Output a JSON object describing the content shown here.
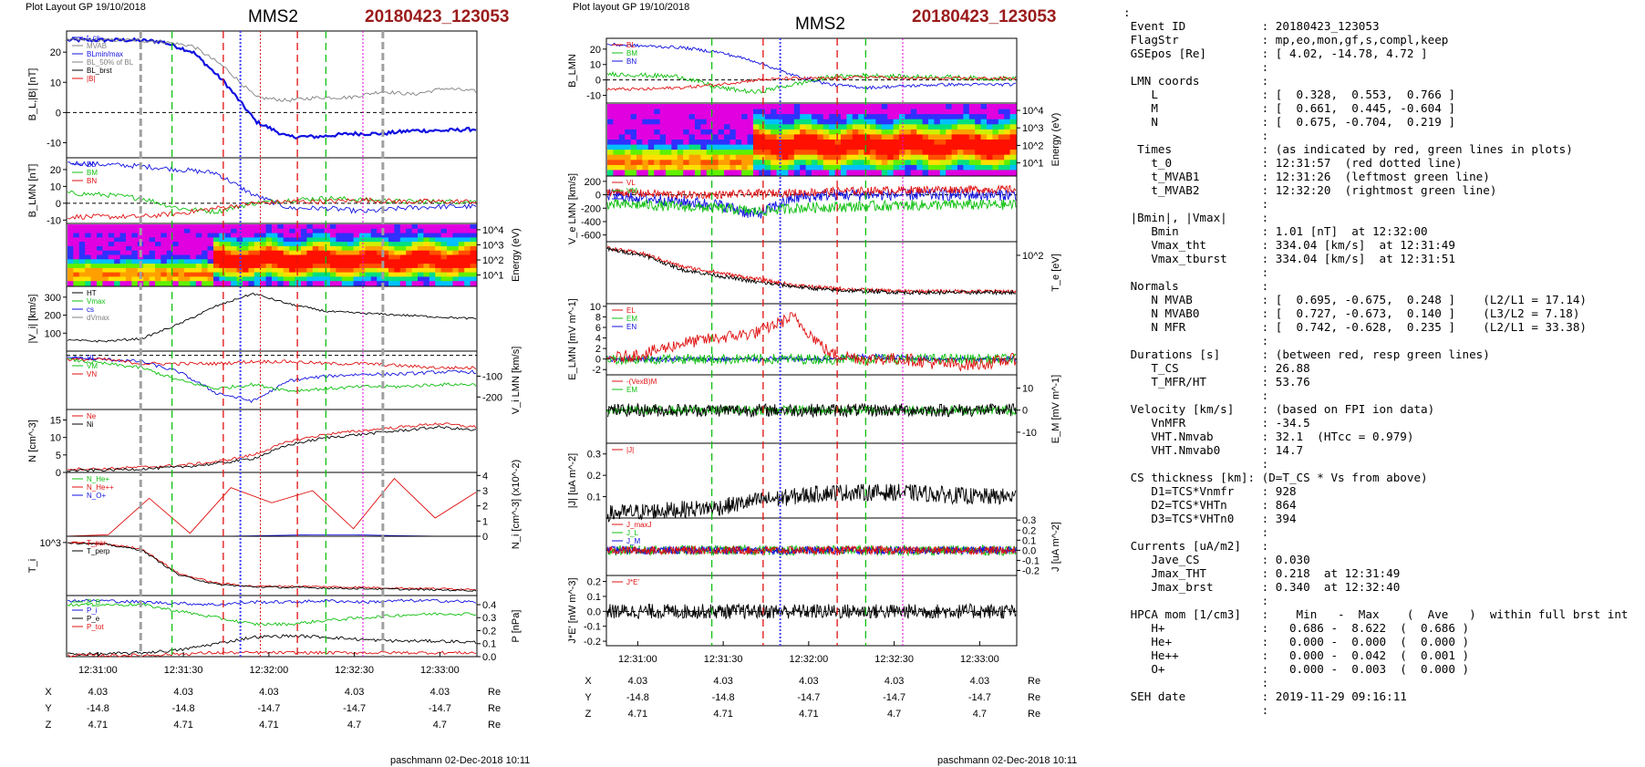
{
  "headers": [
    {
      "small": "Plot Layout GP 19/10/2018",
      "title": "MMS2",
      "event": "20180423_123053"
    },
    {
      "small": "Plot layout GP 19/10/2018",
      "title": "MMS2",
      "event": "20180423_123053"
    }
  ],
  "footer": "paschmann 02-Dec-2018 10:11",
  "time_ticks": [
    "12:31:00",
    "12:31:30",
    "12:32:00",
    "12:32:30",
    "12:33:00"
  ],
  "position_table": {
    "rows": [
      {
        "label": "X",
        "values": [
          "4.03",
          "4.03",
          "4.03",
          "4.03",
          "4.03"
        ],
        "unit": "Re"
      },
      {
        "label": "Y",
        "values": [
          "-14.8",
          "-14.8",
          "-14.7",
          "-14.7",
          "-14.7"
        ],
        "unit": "Re"
      },
      {
        "label": "Z",
        "values": [
          "4.71",
          "4.71",
          "4.71",
          "4.7",
          "4.7"
        ],
        "unit": "Re"
      }
    ]
  },
  "colors": {
    "red": "#e01010",
    "green": "#10c010",
    "blue": "#1010e0",
    "black": "#000000",
    "gray": "#808080",
    "magenta": "#e000e0",
    "title_red": "#9b1b1b"
  },
  "chart_data": [
    {
      "type": "line",
      "panel": "left",
      "x_ticks": [
        "12:31:00",
        "12:31:30",
        "12:32:00",
        "12:32:30",
        "12:33:00"
      ],
      "markers": {
        "green_dashed": [
          "12:31:26",
          "12:32:20"
        ],
        "red_dashed": [
          "12:31:44",
          "12:32:10"
        ],
        "red_dotted": [
          "12:31:57"
        ],
        "gray_dashed": [
          "12:31:15",
          "12:32:40"
        ],
        "blue_dotted": [
          "12:31:50"
        ],
        "magenta_dotted": [
          "12:32:33"
        ]
      },
      "subplots": [
        {
          "ylabel": "B_L,|B| [nT]",
          "yticks": [
            "20",
            "10",
            "0",
            "-10"
          ],
          "legend": [
            "t_cs",
            "MVAB",
            "BLmin/max",
            "BL_50% of BL",
            "BL_brst",
            "|B|"
          ],
          "series": [
            {
              "name": "BL",
              "color": "blue",
              "values": [
                24,
                24,
                24,
                23.5,
                20,
                10,
                -3,
                -8,
                -8,
                -7,
                -7,
                -6,
                -6,
                -5.5
              ]
            },
            {
              "name": "|B|",
              "color": "gray",
              "values": [
                24,
                24,
                24,
                23.5,
                22,
                15,
                5,
                4,
                5,
                5,
                7,
                6,
                8,
                7
              ]
            }
          ]
        },
        {
          "ylabel": "B_LMN [nT]",
          "yticks": [
            "20",
            "10",
            "0",
            "-10"
          ],
          "legend": [
            "BL",
            "BM",
            "BN"
          ],
          "series": [
            {
              "name": "BL",
              "color": "blue",
              "values": [
                24,
                23,
                22,
                20,
                18,
                5,
                -3,
                -3,
                -5,
                -3,
                -2,
                -2
              ]
            },
            {
              "name": "BM",
              "color": "green",
              "values": [
                6,
                5,
                3,
                -3,
                -5,
                0,
                2,
                3,
                2,
                1,
                1,
                1
              ]
            },
            {
              "name": "BN",
              "color": "red",
              "values": [
                -8,
                -8,
                -8,
                -6,
                -3,
                0,
                1,
                1,
                2,
                1,
                1,
                1
              ]
            }
          ]
        },
        {
          "ylabel": "Energy (eV)",
          "yticks": [
            "10^4",
            "10^3",
            "10^2",
            "10^1"
          ],
          "spectrogram": true
        },
        {
          "ylabel": "|V_i| [km/s]",
          "yticks": [
            "300",
            "200",
            "100"
          ],
          "legend": [
            "HT",
            "Vmax",
            "cs",
            "dVmax"
          ],
          "series": [
            {
              "name": "|Vi|",
              "color": "black",
              "values": [
                60,
                55,
                70,
                150,
                250,
                320,
                260,
                220,
                210,
                200,
                190,
                180
              ]
            }
          ]
        },
        {
          "ylabel": "V_i LMN [km/s]",
          "yticks": [
            "-100",
            "-200"
          ],
          "legend": [
            "VL",
            "VM",
            "VN"
          ],
          "series": [
            {
              "name": "VL",
              "color": "blue",
              "values": [
                -10,
                -20,
                -30,
                -80,
                -180,
                -220,
                -120,
                -100,
                -90,
                -90,
                -80,
                -80
              ]
            },
            {
              "name": "VM",
              "color": "green",
              "values": [
                -20,
                -40,
                -60,
                -120,
                -160,
                -140,
                -170,
                -160,
                -150,
                -150,
                -140,
                -140
              ]
            },
            {
              "name": "VN",
              "color": "red",
              "values": [
                -20,
                -20,
                -40,
                -40,
                -40,
                -30,
                -30,
                -40,
                -40,
                -50,
                -60,
                -60
              ]
            }
          ]
        },
        {
          "ylabel": "N [cm^-3]",
          "yticks": [
            "15",
            "10",
            "5",
            "0"
          ],
          "legend": [
            "Ne",
            "Ni"
          ],
          "series": [
            {
              "name": "Ne",
              "color": "red",
              "values": [
                1,
                1,
                1.5,
                2,
                3,
                5,
                9,
                11,
                12,
                13,
                14,
                13
              ]
            },
            {
              "name": "Ni",
              "color": "black",
              "values": [
                0.5,
                0.7,
                1,
                1.5,
                2.5,
                4,
                8,
                10,
                11,
                12,
                13,
                12
              ]
            }
          ]
        },
        {
          "ylabel": "N_i [cm^-3] (x10^-2)",
          "yticks": [
            "4",
            "3",
            "2",
            "1",
            "0"
          ],
          "legend": [
            "N_He+",
            "N_He++",
            "N_O+"
          ],
          "series": [
            {
              "name": "N He+",
              "color": "green",
              "values": [
                0,
                0,
                0,
                0,
                0,
                0,
                0,
                0,
                0
              ]
            },
            {
              "name": "N He++",
              "color": "red",
              "values": [
                0,
                0.1,
                2.5,
                0.2,
                3.2,
                2.2,
                3,
                0.5,
                3.8,
                1.2,
                2.9
              ]
            },
            {
              "name": "N O+",
              "color": "blue",
              "values": [
                0,
                0,
                0,
                0,
                0.1,
                0.1,
                0,
                0
              ]
            }
          ]
        },
        {
          "ylabel": "T_i",
          "yticks": [
            "10^3"
          ],
          "legend": [
            "T_par",
            "T_perp"
          ],
          "series": [
            {
              "name": "Tpar",
              "color": "red",
              "values": [
                1000,
                980,
                900,
                500,
                350,
                300,
                300,
                290,
                280,
                270,
                260,
                250
              ]
            },
            {
              "name": "Tperp",
              "color": "black",
              "values": [
                1000,
                970,
                880,
                480,
                330,
                290,
                280,
                270,
                260,
                250,
                240,
                230
              ]
            }
          ]
        },
        {
          "ylabel": "P [nPa]",
          "yticks": [
            "0.4",
            "0.3",
            "0.2",
            "0.1",
            "0.0"
          ],
          "legend": [
            "P_B",
            "P_i",
            "P_e",
            "P_tot"
          ],
          "series": [
            {
              "name": "Pb",
              "color": "green",
              "values": [
                0.4,
                0.4,
                0.4,
                0.35,
                0.3,
                0.25,
                0.25,
                0.28,
                0.3,
                0.32,
                0.33,
                0.33
              ]
            },
            {
              "name": "Ptot",
              "color": "blue",
              "values": [
                0.43,
                0.43,
                0.42,
                0.41,
                0.4,
                0.42,
                0.42,
                0.43,
                0.42,
                0.43,
                0.43,
                0.42
              ]
            },
            {
              "name": "Pi",
              "color": "black",
              "values": [
                0.02,
                0.02,
                0.03,
                0.05,
                0.1,
                0.15,
                0.16,
                0.15,
                0.13,
                0.12,
                0.12,
                0.11
              ]
            },
            {
              "name": "Pe",
              "color": "red",
              "values": [
                0.01,
                0.01,
                0.01,
                0.02,
                0.03,
                0.03,
                0.03,
                0.03,
                0.03,
                0.03,
                0.03,
                0.03
              ]
            }
          ]
        }
      ]
    },
    {
      "type": "line",
      "panel": "right",
      "x_ticks": [
        "12:31:00",
        "12:31:30",
        "12:32:00",
        "12:32:30",
        "12:33:00"
      ],
      "subplots": [
        {
          "ylabel": "B_LMN",
          "yticks": [
            "20",
            "10",
            "0",
            "-10"
          ],
          "legend": [
            "BL",
            "BM",
            "BN"
          ]
        },
        {
          "ylabel": "Energy (eV)",
          "yticks": [
            "10^4",
            "10^3",
            "10^2",
            "10^1"
          ],
          "spectrogram": true
        },
        {
          "ylabel": "V_e LMN [km/s]",
          "yticks": [
            "200",
            "0",
            "-200",
            "-400",
            "-600"
          ],
          "legend": [
            "VL",
            "VM",
            "VN"
          ]
        },
        {
          "ylabel": "T_e [eV]",
          "yticks": [
            "10^2"
          ]
        },
        {
          "ylabel": "E_LMN [mV m^-1]",
          "yticks": [
            "10",
            "8",
            "6",
            "4",
            "2",
            "0",
            "-2"
          ],
          "legend": [
            "EL",
            "EM",
            "EN"
          ]
        },
        {
          "ylabel": "E_M [mV m^-1]",
          "yticks": [
            "10",
            "0",
            "-10"
          ],
          "legend": [
            "-(VexB)M",
            "EM"
          ]
        },
        {
          "ylabel": "|J| [uA m^-2]",
          "yticks": [
            "0.3",
            "0.2",
            "0.1"
          ],
          "legend": [
            "|J|"
          ]
        },
        {
          "ylabel": "J [uA m^-2]",
          "yticks": [
            "0.3",
            "0.2",
            "0.1",
            "0.0",
            "-0.1",
            "-0.2"
          ],
          "legend": [
            "J_maxJ",
            "J_L",
            "J_M"
          ]
        },
        {
          "ylabel": "J*E' [nW m^-3]",
          "yticks": [
            "0.2",
            "0.1",
            "0.0",
            "-0.1",
            "-0.2"
          ],
          "legend": [
            "J*E'"
          ]
        }
      ]
    }
  ],
  "right_text_lines": [
    ":",
    " Event ID           : 20180423_123053",
    " FlagStr            : mp,eo,mon,gf,s,compl,keep",
    " GSEpos [Re]        : [ 4.02, -14.78, 4.72 ]",
    "                    :",
    " LMN coords         :",
    "    L               : [  0.328,  0.553,  0.766 ]",
    "    M               : [  0.661,  0.445, -0.604 ]",
    "    N               : [  0.675, -0.704,  0.219 ]",
    "                    :",
    "  Times             : (as indicated by red, green lines in plots)",
    "    t_0             : 12:31:57  (red dotted line)",
    "    t_MVAB1         : 12:31:26  (leftmost green line)",
    "    t_MVAB2         : 12:32:20  (rightmost green line)",
    "                    :",
    " |Bmin|, |Vmax|     :",
    "    Bmin            : 1.01 [nT]  at 12:32:00",
    "    Vmax_tht        : 334.04 [km/s]  at 12:31:49",
    "    Vmax_tburst     : 334.04 [km/s]  at 12:31:51",
    "                    :",
    " Normals            :",
    "    N MVAB          : [  0.695, -0.675,  0.248 ]    (L2/L1 = 17.14)",
    "    N MVAB0         : [  0.727, -0.673,  0.140 ]    (L3/L2 = 7.18)",
    "    N MFR           : [  0.742, -0.628,  0.235 ]    (L2/L1 = 33.38)",
    "                    :",
    " Durations [s]      : (between red, resp green lines)",
    "    T_CS            : 26.88",
    "    T_MFR/HT        : 53.76",
    "                    :",
    " Velocity [km/s]    : (based on FPI ion data)",
    "    VnMFR           : -34.5",
    "    VHT.Nmvab       : 32.1  (HTcc = 0.979)",
    "    VHT.Nmvab0      : 14.7",
    "                    :",
    " CS thickness [km]: (D=T_CS * Vs from above)",
    "    D1=TCS*Vnmfr    : 928",
    "    D2=TCS*VHTn     : 864",
    "    D3=TCS*VHTn0    : 394",
    "                    :",
    " Currents [uA/m2]   :",
    "    Jave_CS         : 0.030",
    "    Jmax_THT        : 0.218  at 12:31:49",
    "    Jmax_brst       : 0.340  at 12:32:40",
    "                    :",
    " HPCA mom [1/cm3]   :    Min   -  Max    (  Ave   )  within full brst int",
    "    H+              :   0.686 -  8.622  (  0.686 )",
    "    He+             :   0.000 -  0.000  (  0.000 )",
    "    He++            :   0.000 -  0.042  (  0.001 )",
    "    O+              :   0.000 -  0.003  (  0.000 )",
    "                    :",
    " SEH date           : 2019-11-29 09:16:11",
    "                    :"
  ]
}
